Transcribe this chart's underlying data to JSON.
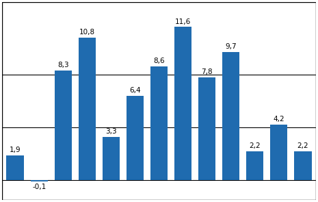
{
  "values": [
    1.9,
    -0.1,
    8.3,
    10.8,
    3.3,
    6.4,
    8.6,
    11.6,
    7.8,
    9.7,
    2.2,
    4.2,
    2.2
  ],
  "bar_color": "#1F6BAF",
  "background_color": "#ffffff",
  "ylim": [
    -1.5,
    13.5
  ],
  "gridline_y": [
    4.0,
    8.0
  ],
  "label_fontsize": 7.5,
  "bar_width": 0.72,
  "figsize": [
    4.65,
    2.95
  ],
  "dpi": 100
}
